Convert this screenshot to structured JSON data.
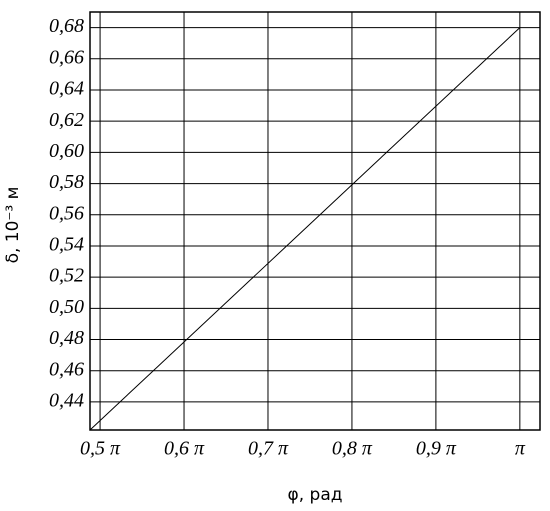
{
  "chart_data": {
    "type": "line",
    "x_label": "φ, рад",
    "y_label": "δ, 10⁻³ м",
    "x": [
      0.488,
      0.75,
      1.0
    ],
    "series": [
      {
        "color": "#000000",
        "values": [
          0.422,
          0.554,
          0.68
        ]
      }
    ],
    "xlim": [
      0.488,
      1.024
    ],
    "ylim": [
      0.422,
      0.69
    ],
    "xticks": [
      {
        "value": 0.5,
        "label": "0,5 π"
      },
      {
        "value": 0.6,
        "label": "0,6 π"
      },
      {
        "value": 0.7,
        "label": "0,7 π"
      },
      {
        "value": 0.8,
        "label": "0,8 π"
      },
      {
        "value": 0.9,
        "label": "0,9 π"
      },
      {
        "value": 1.0,
        "label": "π"
      }
    ],
    "yticks": [
      {
        "value": 0.44,
        "label": "0,44"
      },
      {
        "value": 0.46,
        "label": "0,46"
      },
      {
        "value": 0.48,
        "label": "0,48"
      },
      {
        "value": 0.5,
        "label": "0,50"
      },
      {
        "value": 0.52,
        "label": "0,52"
      },
      {
        "value": 0.54,
        "label": "0,54"
      },
      {
        "value": 0.56,
        "label": "0,56"
      },
      {
        "value": 0.58,
        "label": "0,58"
      },
      {
        "value": 0.6,
        "label": "0,60"
      },
      {
        "value": 0.62,
        "label": "0,62"
      },
      {
        "value": 0.64,
        "label": "0,64"
      },
      {
        "value": 0.66,
        "label": "0,66"
      },
      {
        "value": 0.68,
        "label": "0,68"
      }
    ],
    "grid": true
  }
}
